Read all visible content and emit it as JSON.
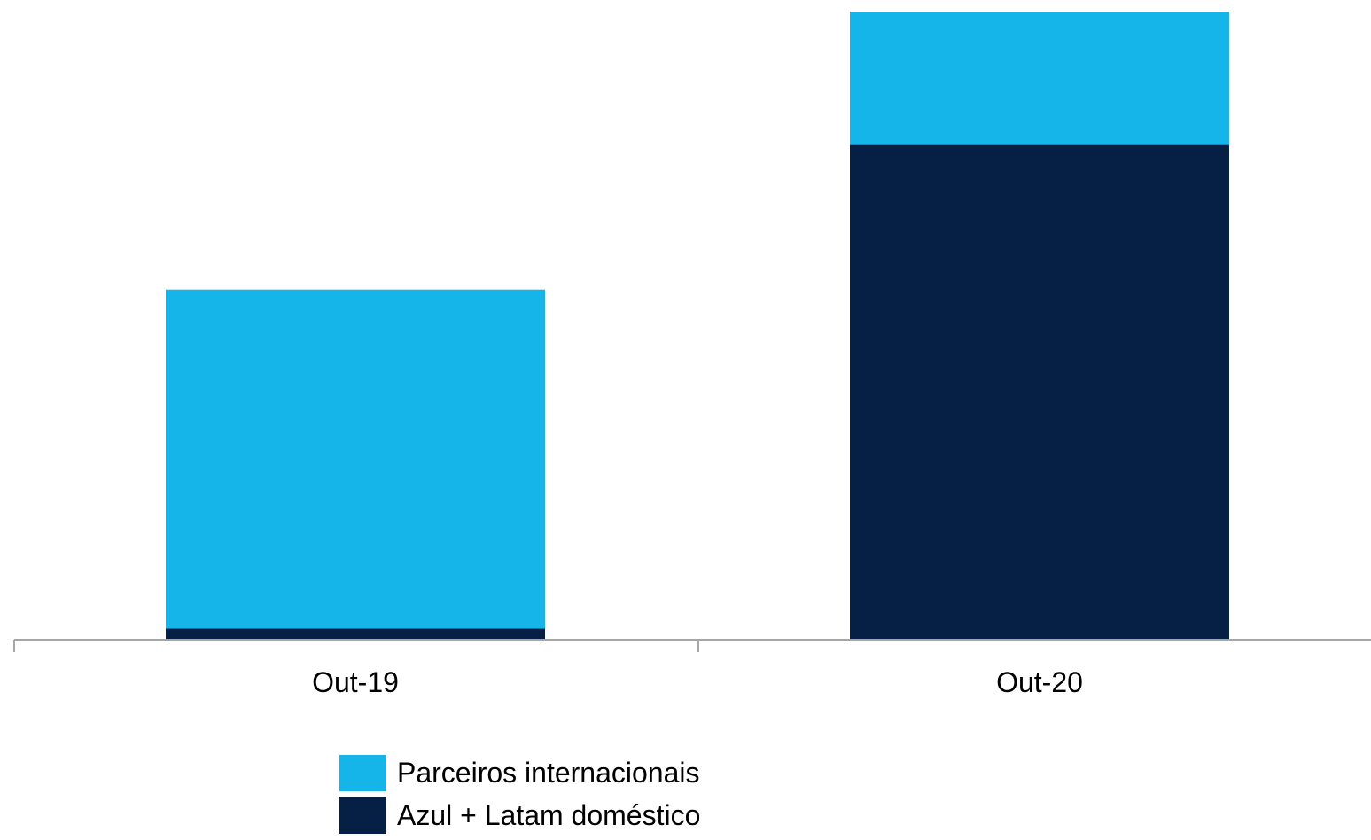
{
  "chart_data": {
    "type": "bar",
    "stacked": true,
    "categories": [
      "Out-19",
      "Out-20"
    ],
    "series": [
      {
        "name": "Azul + Latam doméstico",
        "color": "#062045",
        "values": [
          2,
          89
        ]
      },
      {
        "name": "Parceiros internacionais",
        "color": "#16B5E9",
        "values": [
          61,
          24
        ]
      }
    ],
    "ylim": [
      0,
      113
    ],
    "grid": false,
    "legend_position": "bottom",
    "legend": [
      {
        "label": "Parceiros internacionais",
        "color": "#16B5E9"
      },
      {
        "label": "Azul + Latam doméstico",
        "color": "#062045"
      }
    ]
  }
}
